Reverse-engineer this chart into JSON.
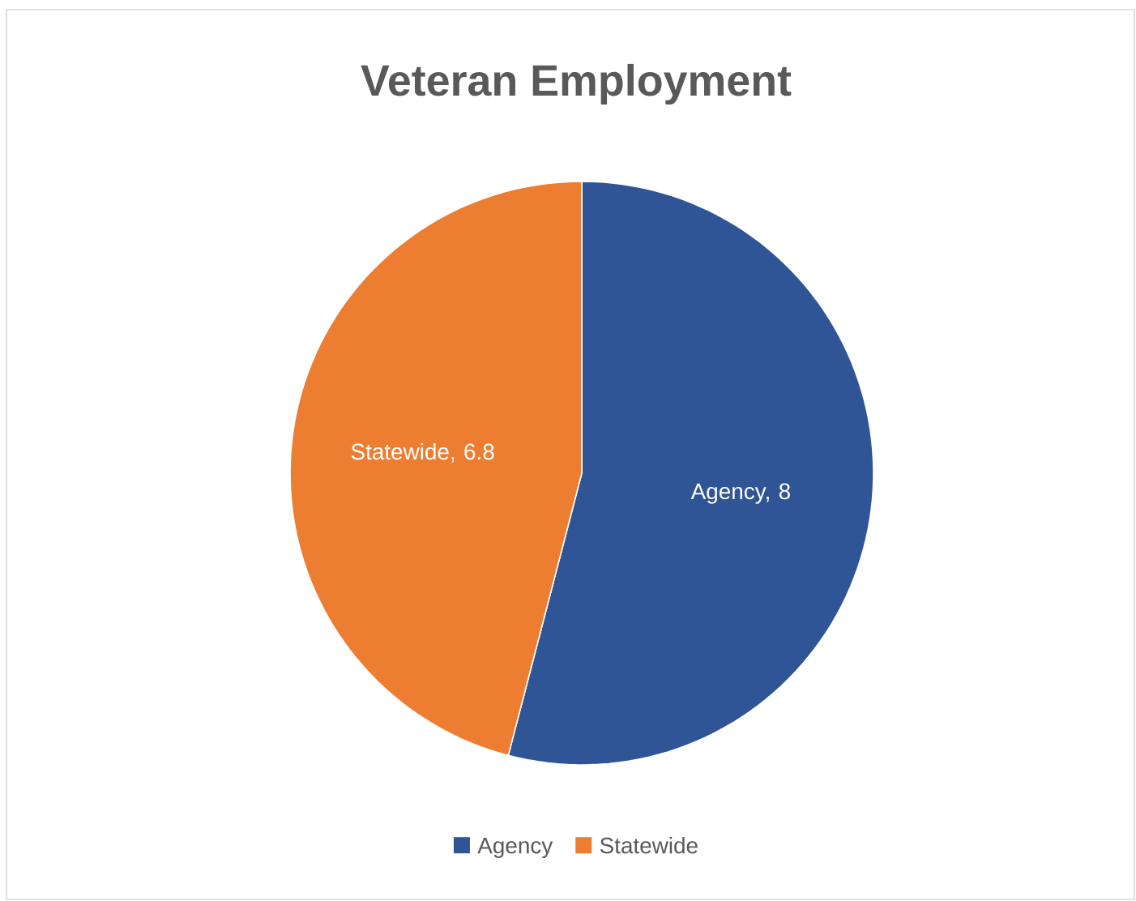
{
  "chart_data": {
    "type": "pie",
    "title": "Veteran Employment",
    "categories": [
      "Agency",
      "Statewide"
    ],
    "values": [
      8,
      6.8
    ],
    "colors": [
      "#2f5597",
      "#ed7d31"
    ],
    "value_labels": [
      "Agency, 8",
      "Statewide, 6.8"
    ],
    "legend": "bottom"
  }
}
